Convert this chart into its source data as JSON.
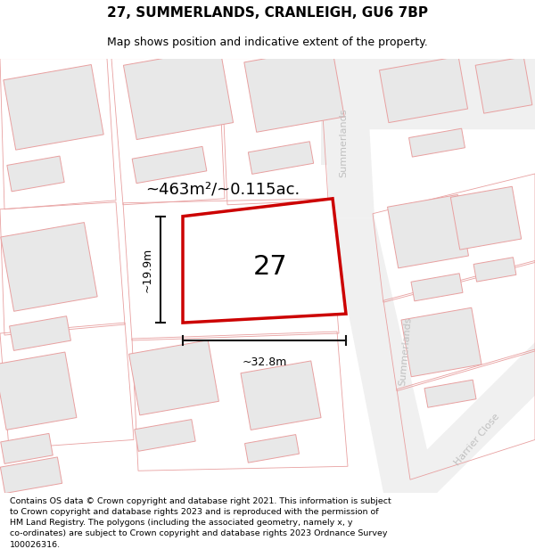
{
  "title": "27, SUMMERLANDS, CRANLEIGH, GU6 7BP",
  "subtitle": "Map shows position and indicative extent of the property.",
  "area_text": "~463m²/~0.115ac.",
  "number_label": "27",
  "width_label": "~32.8m",
  "height_label": "~19.9m",
  "footer_lines": [
    "Contains OS data © Crown copyright and database right 2021. This information is subject to Crown copyright and database rights 2023 and is reproduced with the permission of",
    "HM Land Registry. The polygons (including the associated geometry, namely x, y co-ordinates) are subject to Crown copyright and database rights 2023 Ordnance Survey",
    "100026316."
  ],
  "map_bg": "#ffffff",
  "building_fill": "#e8e8e8",
  "building_outline": "#e8a0a0",
  "road_fill": "#f0f0f0",
  "plot_outline_color": "#cc0000",
  "plot_fill": "#ffffff",
  "dim_color": "#111111",
  "label_color": "#c0c0c0",
  "title_fontsize": 11,
  "subtitle_fontsize": 9,
  "area_fontsize": 13,
  "num_fontsize": 22,
  "dim_fontsize": 9,
  "road_label_fontsize": 8,
  "footer_fontsize": 6.8,
  "figsize": [
    6.0,
    6.25
  ],
  "dpi": 100
}
